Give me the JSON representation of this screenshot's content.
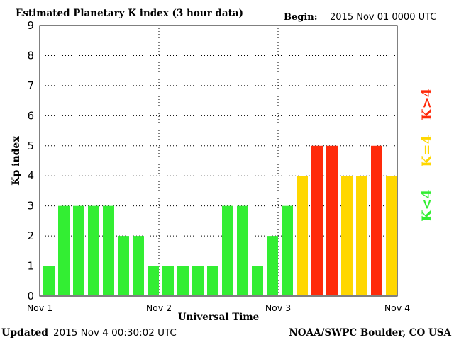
{
  "header": {
    "title": "Estimated Planetary K index (3 hour data)",
    "begin_label": "Begin:",
    "begin_value": "2015 Nov 01 0000 UTC"
  },
  "footer": {
    "updated_label": "Updated",
    "updated_value": "2015 Nov  4 00:30:02 UTC",
    "credit": "NOAA/SWPC Boulder, CO USA"
  },
  "legend": {
    "low": {
      "label": "K<4",
      "color": "#33ee33"
    },
    "mid": {
      "label": "K=4",
      "color": "#ffd700"
    },
    "high": {
      "label": "K>4",
      "color": "#ff2a0a"
    }
  },
  "chart_data": {
    "type": "bar",
    "title": "Estimated Planetary K index (3 hour data)",
    "xlabel": "Universal Time",
    "ylabel": "Kp index",
    "ylim": [
      0,
      9
    ],
    "yticks": [
      "0",
      "1",
      "2",
      "3",
      "4",
      "5",
      "6",
      "7",
      "8",
      "9"
    ],
    "xticks": [
      "Nov 1",
      "Nov 2",
      "Nov 3",
      "Nov 4"
    ],
    "grid": true,
    "interval_hours": 3,
    "values": [
      1,
      3,
      3,
      3,
      3,
      2,
      2,
      1,
      1,
      1,
      1,
      1,
      3,
      3,
      1,
      2,
      3,
      4,
      5,
      5,
      4,
      4,
      5,
      4
    ]
  }
}
